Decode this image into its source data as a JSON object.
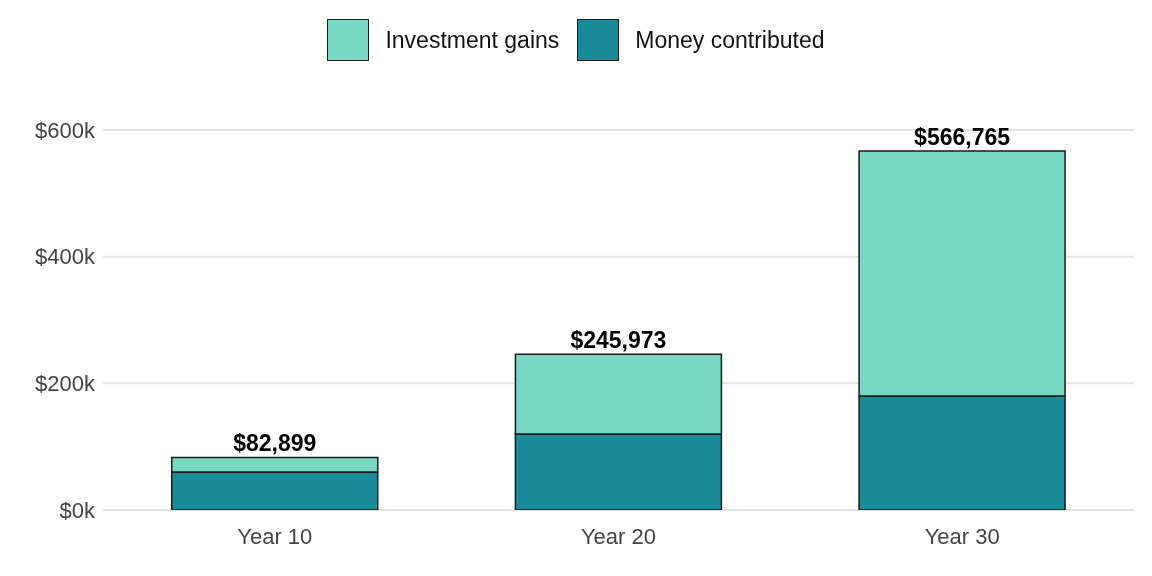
{
  "chart_data": {
    "type": "bar",
    "stacked": true,
    "categories": [
      "Year 10",
      "Year 20",
      "Year 30"
    ],
    "series": [
      {
        "name": "Money contributed",
        "color": "#188a98",
        "values": [
          60000,
          120000,
          180000
        ]
      },
      {
        "name": "Investment gains",
        "color": "#77d8c4",
        "values": [
          22899,
          125973,
          386765
        ]
      }
    ],
    "totals": [
      "$82,899",
      "$245,973",
      "$566,765"
    ],
    "ylim": [
      0,
      600000
    ],
    "yticks": [
      {
        "value": 0,
        "label": "$0k"
      },
      {
        "value": 200000,
        "label": "$200k"
      },
      {
        "value": 400000,
        "label": "$400k"
      },
      {
        "value": 600000,
        "label": "$600k"
      }
    ],
    "grid": "y",
    "legend": "top"
  }
}
